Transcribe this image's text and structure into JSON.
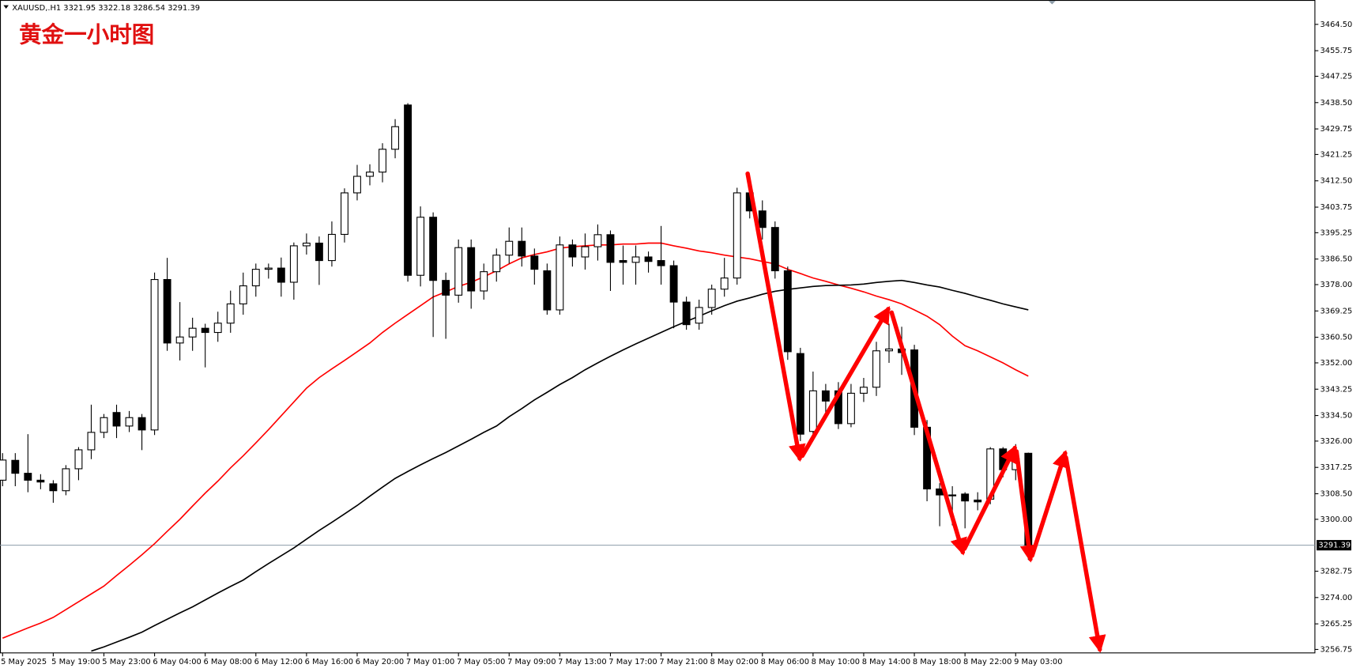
{
  "header": "XAUUSD,.H1  3321.95 3322.18 3286.54 3291.39",
  "chart_data": {
    "type": "candlestick",
    "title": "黄金一小时图",
    "categories": [
      "5 May 2025",
      null,
      null,
      null,
      "5 May 19:00",
      null,
      null,
      null,
      "5 May 23:00",
      null,
      null,
      null,
      "6 May 04:00",
      null,
      null,
      null,
      "6 May 08:00",
      null,
      null,
      null,
      "6 May 12:00",
      null,
      null,
      null,
      "6 May 16:00",
      null,
      null,
      null,
      "6 May 20:00",
      null,
      null,
      null,
      "7 May 01:00",
      null,
      null,
      null,
      "7 May 05:00",
      null,
      null,
      null,
      "7 May 09:00",
      null,
      null,
      null,
      "7 May 13:00",
      null,
      null,
      null,
      "7 May 17:00",
      null,
      null,
      null,
      "7 May 21:00",
      null,
      null,
      null,
      "8 May 02:00",
      null,
      null,
      null,
      "8 May 06:00",
      null,
      null,
      null,
      "8 May 10:00",
      null,
      null,
      null,
      "8 May 14:00",
      null,
      null,
      null,
      "8 May 18:00",
      null,
      null,
      null,
      "8 May 22:00",
      null,
      null,
      null,
      "9 May 03:00",
      null
    ],
    "open": [
      3313,
      3319.6,
      3315.3,
      3313,
      3311.8,
      3309.5,
      3316.8,
      3323.1,
      3328.9,
      3335.5,
      3331,
      3333.8,
      3329.7,
      3379.7,
      3358.6,
      3360.6,
      3363.5,
      3362.1,
      3365.2,
      3371.6,
      3377.6,
      3383.1,
      3383.5,
      3378.8,
      3390.9,
      3391.8,
      3386,
      3394.7,
      3408.5,
      3414,
      3415.4,
      3423,
      3437.7,
      3381.1,
      3400.4,
      3379.4,
      3374.5,
      3390.3,
      3375.9,
      3382.3,
      3387.8,
      3392.4,
      3387.5,
      3382.6,
      3369.6,
      3391.2,
      3387.2,
      3390.6,
      3394.6,
      3386,
      3385.4,
      3387.2,
      3386,
      3384.3,
      3372.2,
      3365.2,
      3370.4,
      3376.5,
      3380.2,
      3408.5,
      3402.5,
      3397,
      3382.6,
      3355.1,
      3329.2,
      3342.7,
      3342.7,
      3331.8,
      3341.9,
      3343.9,
      3356,
      3356.6,
      3356.3,
      3330.6,
      3310.1,
      3308.1,
      3308.4,
      3306.4,
      3306.7,
      3323.4,
      3316.5,
      3321.95
    ],
    "high": [
      3322,
      3322,
      3328.3,
      3315,
      3313,
      3318,
      3324,
      3338.1,
      3335,
      3338.1,
      3336,
      3335,
      3382,
      3386.9,
      3372.2,
      3367,
      3365,
      3369,
      3376,
      3382,
      3385,
      3385,
      3387,
      3392,
      3395,
      3394,
      3399,
      3410,
      3417.8,
      3418,
      3425,
      3433,
      3438.3,
      3404,
      3402,
      3382,
      3393,
      3393,
      3385,
      3390,
      3397,
      3397,
      3390,
      3385,
      3394,
      3393,
      3395,
      3398,
      3396,
      3391,
      3391,
      3389,
      3397.5,
      3386,
      3374,
      3373,
      3378,
      3386.9,
      3410.2,
      3413.4,
      3406,
      3399,
      3384,
      3357,
      3349.1,
      3345,
      3345.6,
      3345,
      3347,
      3359,
      3365,
      3364,
      3358,
      3333,
      3312,
      3311,
      3309,
      3309,
      3324,
      3324,
      3325,
      3322.18
    ],
    "low": [
      3311,
      3311,
      3309,
      3310,
      3305.5,
      3308,
      3313,
      3320,
      3327,
      3327,
      3329,
      3323,
      3328,
      3356,
      3352.8,
      3356,
      3350.5,
      3359,
      3362,
      3368,
      3374,
      3380,
      3374,
      3373,
      3388,
      3377.9,
      3384,
      3392,
      3406,
      3411,
      3412,
      3420,
      3379,
      3377.4,
      3360.6,
      3360,
      3372,
      3370,
      3373,
      3379,
      3385,
      3384,
      3378,
      3368,
      3368,
      3384,
      3383,
      3386,
      3375.9,
      3378,
      3378,
      3382,
      3378,
      3363.5,
      3363,
      3363,
      3368,
      3374,
      3378,
      3400,
      3393,
      3380,
      3353,
      3326,
      3326,
      3334,
      3330,
      3330.6,
      3339,
      3341,
      3352,
      3348,
      3328,
      3306,
      3297.7,
      3298,
      3297,
      3303,
      3305,
      3314,
      3313,
      3286.54
    ],
    "close": [
      3319.7,
      3315.3,
      3313,
      3312.4,
      3309.5,
      3316.8,
      3323.1,
      3328.9,
      3333.8,
      3331,
      3333.8,
      3329.7,
      3379.7,
      3358.6,
      3360.6,
      3363.5,
      3362.1,
      3365.2,
      3371.6,
      3377.6,
      3383.1,
      3383.5,
      3378.8,
      3390.9,
      3391.8,
      3386,
      3394.7,
      3408.5,
      3414,
      3415.4,
      3423,
      3430.5,
      3381.1,
      3400.4,
      3379.4,
      3374.5,
      3390.3,
      3375.9,
      3382.3,
      3387.8,
      3392.4,
      3387.5,
      3383.1,
      3369.6,
      3391.2,
      3387.2,
      3390.6,
      3394.6,
      3385.4,
      3385.4,
      3387.2,
      3385.7,
      3384.3,
      3372.2,
      3364.7,
      3370.4,
      3376.5,
      3380.2,
      3408.5,
      3402.5,
      3397,
      3382.6,
      3355.7,
      3328.3,
      3342.7,
      3339.3,
      3331.8,
      3341.9,
      3343.9,
      3356,
      3356.6,
      3355.4,
      3330.6,
      3310.1,
      3308.1,
      3307.8,
      3306.1,
      3305.8,
      3323.4,
      3316.5,
      3320.2,
      3291.39
    ],
    "up_color": "#ffffff",
    "down_color": "#000000",
    "lines": [
      {
        "color": "#ff0000",
        "values": [
          3260.5,
          3262.2,
          3263.9,
          3265.5,
          3267.4,
          3270.0,
          3272.6,
          3275.2,
          3277.8,
          3281.3,
          3284.7,
          3288.2,
          3291.9,
          3296.0,
          3300.0,
          3304.4,
          3308.7,
          3312.7,
          3317.1,
          3321.1,
          3325.4,
          3329.8,
          3334.4,
          3339.0,
          3343.6,
          3347.1,
          3350.0,
          3352.8,
          3355.7,
          3358.6,
          3362.1,
          3365.2,
          3368.1,
          3371.0,
          3373.9,
          3375.6,
          3377.4,
          3378.8,
          3380.6,
          3382.6,
          3384.9,
          3386.9,
          3388.0,
          3388.9,
          3390.1,
          3390.6,
          3390.9,
          3391.2,
          3391.2,
          3391.5,
          3391.5,
          3391.8,
          3391.8,
          3390.9,
          3390.1,
          3389.2,
          3388.6,
          3387.8,
          3387.2,
          3386.6,
          3385.7,
          3384.9,
          3383.1,
          3381.7,
          3380.2,
          3379.1,
          3377.9,
          3376.8,
          3375.6,
          3374.2,
          3373.0,
          3371.6,
          3369.6,
          3367.5,
          3364.7,
          3360.9,
          3357.7,
          3356.0,
          3354.0,
          3352.0,
          3349.7,
          3347.6
        ]
      },
      {
        "color": "#000000",
        "values": [
          null,
          null,
          null,
          null,
          null,
          null,
          null,
          3256.2,
          3257.6,
          3259.2,
          3260.8,
          3262.5,
          3264.7,
          3266.8,
          3268.9,
          3270.9,
          3273.2,
          3275.5,
          3277.7,
          3279.8,
          3282.6,
          3285.3,
          3287.9,
          3290.5,
          3293.4,
          3296.3,
          3299.0,
          3301.8,
          3304.6,
          3307.7,
          3310.7,
          3313.6,
          3315.9,
          3318.1,
          3320.2,
          3322.2,
          3324.4,
          3326.6,
          3328.9,
          3331.0,
          3334.1,
          3336.8,
          3339.7,
          3342.2,
          3344.8,
          3347.1,
          3349.7,
          3352.0,
          3354.2,
          3356.3,
          3358.3,
          3360.2,
          3362.1,
          3364.0,
          3365.8,
          3367.5,
          3369.3,
          3371.0,
          3372.5,
          3373.6,
          3374.8,
          3375.8,
          3376.4,
          3376.9,
          3377.4,
          3377.7,
          3377.8,
          3377.9,
          3378.2,
          3378.7,
          3379.1,
          3379.4,
          3378.7,
          3377.9,
          3377.2,
          3376.1,
          3375.1,
          3373.9,
          3372.8,
          3371.6,
          3370.6,
          3369.6
        ]
      }
    ],
    "last_price": 3291.39,
    "last_price_color": "#8c9ca8",
    "ylim": [
      3255.6,
      3472.6
    ],
    "yticks": [
      {
        "value": 3464.5,
        "label": "3464.50"
      },
      {
        "value": 3455.75,
        "label": "3455.75"
      },
      {
        "value": 3447.25,
        "label": "3447.25"
      },
      {
        "value": 3438.5,
        "label": "3438.50"
      },
      {
        "value": 3429.75,
        "label": "3429.75"
      },
      {
        "value": 3421.25,
        "label": "3421.25"
      },
      {
        "value": 3412.5,
        "label": "3412.50"
      },
      {
        "value": 3403.75,
        "label": "3403.75"
      },
      {
        "value": 3395.25,
        "label": "3395.25"
      },
      {
        "value": 3386.5,
        "label": "3386.50"
      },
      {
        "value": 3378,
        "label": "3378.00"
      },
      {
        "value": 3369.25,
        "label": "3369.25"
      },
      {
        "value": 3360.5,
        "label": "3360.50"
      },
      {
        "value": 3352,
        "label": "3352.00"
      },
      {
        "value": 3343.25,
        "label": "3343.25"
      },
      {
        "value": 3334.5,
        "label": "3334.50"
      },
      {
        "value": 3326,
        "label": "3326.00"
      },
      {
        "value": 3317.25,
        "label": "3317.25"
      },
      {
        "value": 3308.5,
        "label": "3308.50"
      },
      {
        "value": 3300,
        "label": "3300.00"
      },
      {
        "value": 3282.75,
        "label": "3282.75"
      },
      {
        "value": 3274,
        "label": "3274.00"
      },
      {
        "value": 3265.25,
        "label": "3265.25"
      },
      {
        "value": 3256.75,
        "label": "3256.75"
      }
    ],
    "grid": false
  }
}
